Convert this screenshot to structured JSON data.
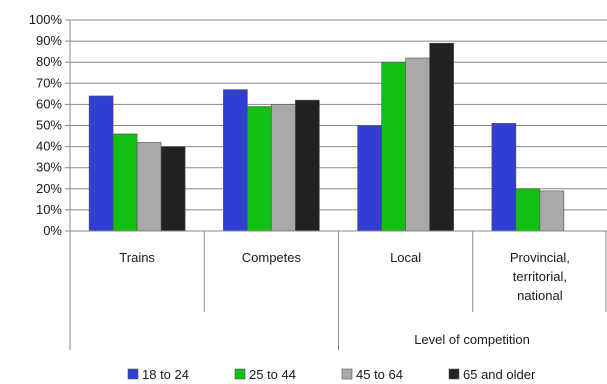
{
  "chart_data": {
    "type": "bar",
    "categories": [
      "Trains",
      "Competes",
      "Local",
      "Provincial, territorial, national"
    ],
    "category_lines": [
      [
        "Trains"
      ],
      [
        "Competes"
      ],
      [
        "Local"
      ],
      [
        "Provincial,",
        "territorial,",
        "national"
      ]
    ],
    "group_label": "Level of competition",
    "series": [
      {
        "name": "18 to 24",
        "color": "#2f3fd1",
        "values": [
          64,
          67,
          50,
          51
        ]
      },
      {
        "name": "25 to 44",
        "color": "#12c012",
        "values": [
          46,
          59,
          80,
          20
        ]
      },
      {
        "name": "45 to 64",
        "color": "#a9a9a9",
        "values": [
          42,
          60,
          82,
          19
        ]
      },
      {
        "name": "65 and older",
        "color": "#222222",
        "values": [
          40,
          62,
          89,
          null
        ]
      }
    ],
    "ylim": [
      0,
      100
    ],
    "yticks": [
      "0%",
      "10%",
      "20%",
      "30%",
      "40%",
      "50%",
      "60%",
      "70%",
      "80%",
      "90%",
      "100%"
    ],
    "grid": true,
    "legend_position": "bottom"
  }
}
